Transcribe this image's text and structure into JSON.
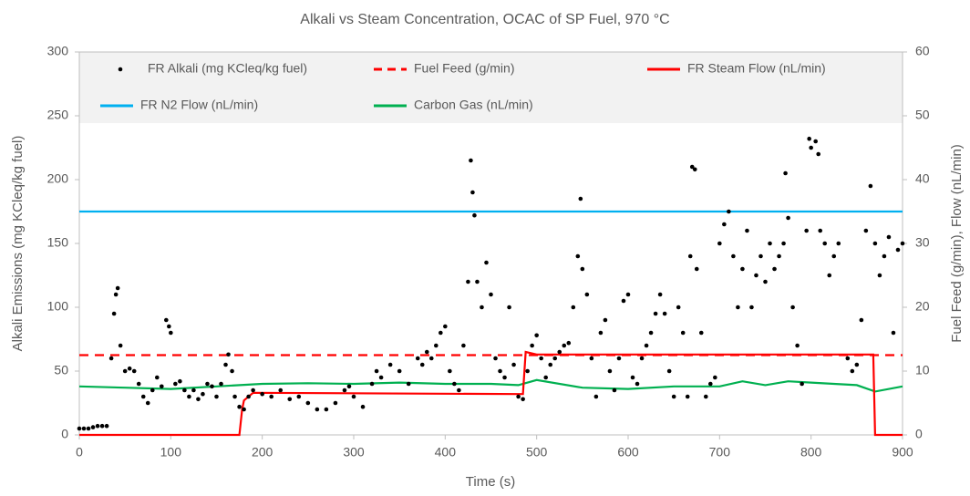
{
  "chart_data": {
    "type": "scatter_line",
    "title": "Alkali vs Steam Concentration, OCAC of SP Fuel, 970 °C",
    "x_label": "Time (s)",
    "y_label": "Alkali Emissions (mg KCleq/kg fuel)",
    "y2_label": "Fuel Feed (g/min), Flow (nL/min)",
    "xlim": [
      0,
      900
    ],
    "xticks": [
      0,
      100,
      200,
      300,
      400,
      500,
      600,
      700,
      800,
      900
    ],
    "ylim": [
      0,
      300
    ],
    "yticks": [
      0,
      50,
      100,
      150,
      200,
      250,
      300
    ],
    "y2lim": [
      0,
      60
    ],
    "y2ticks": [
      0,
      10,
      20,
      30,
      40,
      50,
      60
    ],
    "legend": "top",
    "series": [
      {
        "name": "FR Alkali (mg KCleq/kg fuel)",
        "color": "#000000",
        "kind": "points",
        "axis": "y",
        "x": [
          0,
          5,
          10,
          15,
          20,
          25,
          30,
          35,
          38,
          40,
          42,
          45,
          50,
          55,
          60,
          65,
          70,
          75,
          80,
          85,
          90,
          95,
          98,
          100,
          105,
          110,
          115,
          120,
          125,
          130,
          135,
          140,
          145,
          150,
          155,
          160,
          163,
          167,
          170,
          175,
          180,
          185,
          190,
          200,
          210,
          220,
          230,
          240,
          250,
          260,
          270,
          280,
          290,
          295,
          300,
          310,
          320,
          325,
          330,
          340,
          350,
          360,
          370,
          375,
          380,
          385,
          390,
          395,
          400,
          405,
          410,
          415,
          420,
          425,
          428,
          430,
          432,
          435,
          440,
          445,
          450,
          455,
          460,
          465,
          470,
          475,
          480,
          485,
          490,
          495,
          500,
          505,
          510,
          515,
          520,
          525,
          530,
          535,
          540,
          545,
          548,
          550,
          555,
          560,
          565,
          570,
          575,
          580,
          585,
          590,
          595,
          600,
          605,
          610,
          615,
          620,
          625,
          630,
          635,
          640,
          645,
          650,
          655,
          660,
          665,
          668,
          670,
          673,
          675,
          680,
          685,
          690,
          695,
          700,
          705,
          710,
          715,
          720,
          725,
          730,
          735,
          740,
          745,
          750,
          755,
          760,
          765,
          770,
          772,
          775,
          780,
          785,
          790,
          795,
          798,
          800,
          805,
          808,
          810,
          815,
          820,
          825,
          830,
          840,
          845,
          850,
          855,
          860,
          865,
          870,
          875,
          880,
          885,
          890,
          895,
          900
        ],
        "values": [
          5,
          5,
          5,
          6,
          7,
          7,
          7,
          60,
          95,
          110,
          115,
          70,
          50,
          52,
          50,
          40,
          30,
          25,
          35,
          45,
          38,
          90,
          85,
          80,
          40,
          42,
          35,
          30,
          35,
          28,
          32,
          40,
          38,
          30,
          40,
          55,
          63,
          50,
          30,
          22,
          20,
          30,
          35,
          32,
          30,
          35,
          28,
          30,
          25,
          20,
          20,
          25,
          35,
          38,
          30,
          22,
          40,
          50,
          45,
          55,
          50,
          40,
          60,
          55,
          65,
          60,
          70,
          80,
          85,
          50,
          40,
          35,
          70,
          120,
          215,
          190,
          172,
          120,
          100,
          135,
          110,
          60,
          50,
          45,
          100,
          55,
          30,
          28,
          50,
          70,
          78,
          60,
          45,
          55,
          60,
          65,
          70,
          72,
          100,
          140,
          185,
          130,
          110,
          60,
          30,
          80,
          90,
          50,
          35,
          60,
          105,
          110,
          45,
          40,
          60,
          70,
          80,
          95,
          110,
          95,
          50,
          30,
          100,
          80,
          30,
          140,
          210,
          208,
          130,
          80,
          30,
          40,
          45,
          150,
          165,
          175,
          140,
          100,
          130,
          160,
          100,
          125,
          140,
          120,
          150,
          130,
          140,
          150,
          205,
          170,
          100,
          70,
          40,
          160,
          232,
          225,
          230,
          220,
          160,
          150,
          125,
          140,
          150,
          60,
          50,
          55,
          90,
          160,
          195,
          150,
          125,
          140,
          155,
          80,
          145,
          150
        ]
      },
      {
        "name": "Fuel Feed (g/min)",
        "color": "#ff0000",
        "kind": "dashed",
        "axis": "y2",
        "x": [
          0,
          900
        ],
        "values": [
          12.5,
          12.5
        ]
      },
      {
        "name": "FR Steam Flow (nL/min)",
        "color": "#ff0000",
        "kind": "solid",
        "axis": "y2",
        "x": [
          0,
          175,
          178,
          180,
          190,
          480,
          485,
          488,
          500,
          868,
          870,
          900
        ],
        "values": [
          0,
          0,
          4,
          5.4,
          6.6,
          6.4,
          6.4,
          13,
          12.6,
          12.6,
          0,
          0
        ]
      },
      {
        "name": "FR N2 Flow (nL/min)",
        "color": "#00b0f0",
        "kind": "solid",
        "axis": "y2",
        "x": [
          0,
          900
        ],
        "values": [
          35,
          35
        ]
      },
      {
        "name": "Carbon Gas (nL/min)",
        "color": "#00b050",
        "kind": "solid",
        "axis": "y2",
        "x": [
          0,
          50,
          100,
          150,
          200,
          250,
          300,
          350,
          400,
          450,
          480,
          500,
          550,
          600,
          650,
          700,
          725,
          750,
          775,
          800,
          850,
          870,
          900
        ],
        "values": [
          7.6,
          7.4,
          7.2,
          7.6,
          8,
          8.1,
          8,
          8.2,
          8,
          8,
          7.8,
          8.6,
          7.4,
          7.2,
          7.6,
          7.6,
          8.4,
          7.8,
          8.4,
          8.2,
          7.8,
          6.8,
          7.6
        ]
      }
    ]
  }
}
